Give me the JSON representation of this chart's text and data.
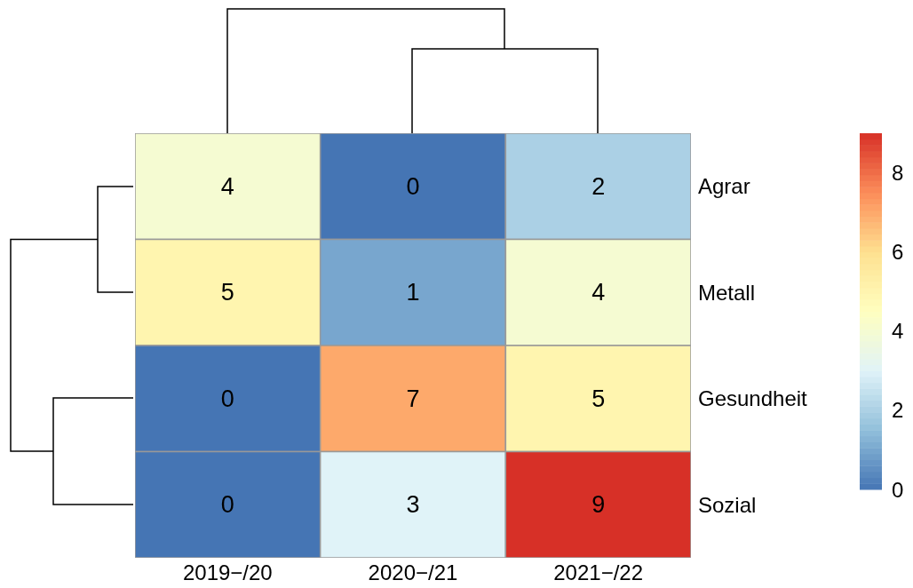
{
  "chart_data": {
    "type": "heatmap",
    "categories": [
      "2019−/20",
      "2020−/21",
      "2021−/22"
    ],
    "y_categories": [
      "Agrar",
      "Metall",
      "Gesundheit",
      "Sozial"
    ],
    "cells": [
      [
        4,
        0,
        2
      ],
      [
        5,
        1,
        4
      ],
      [
        0,
        7,
        5
      ],
      [
        0,
        3,
        9
      ]
    ],
    "data_labels": true,
    "clim": [
      0,
      9
    ],
    "cticks": [
      0,
      2,
      4,
      6,
      8
    ]
  }
}
